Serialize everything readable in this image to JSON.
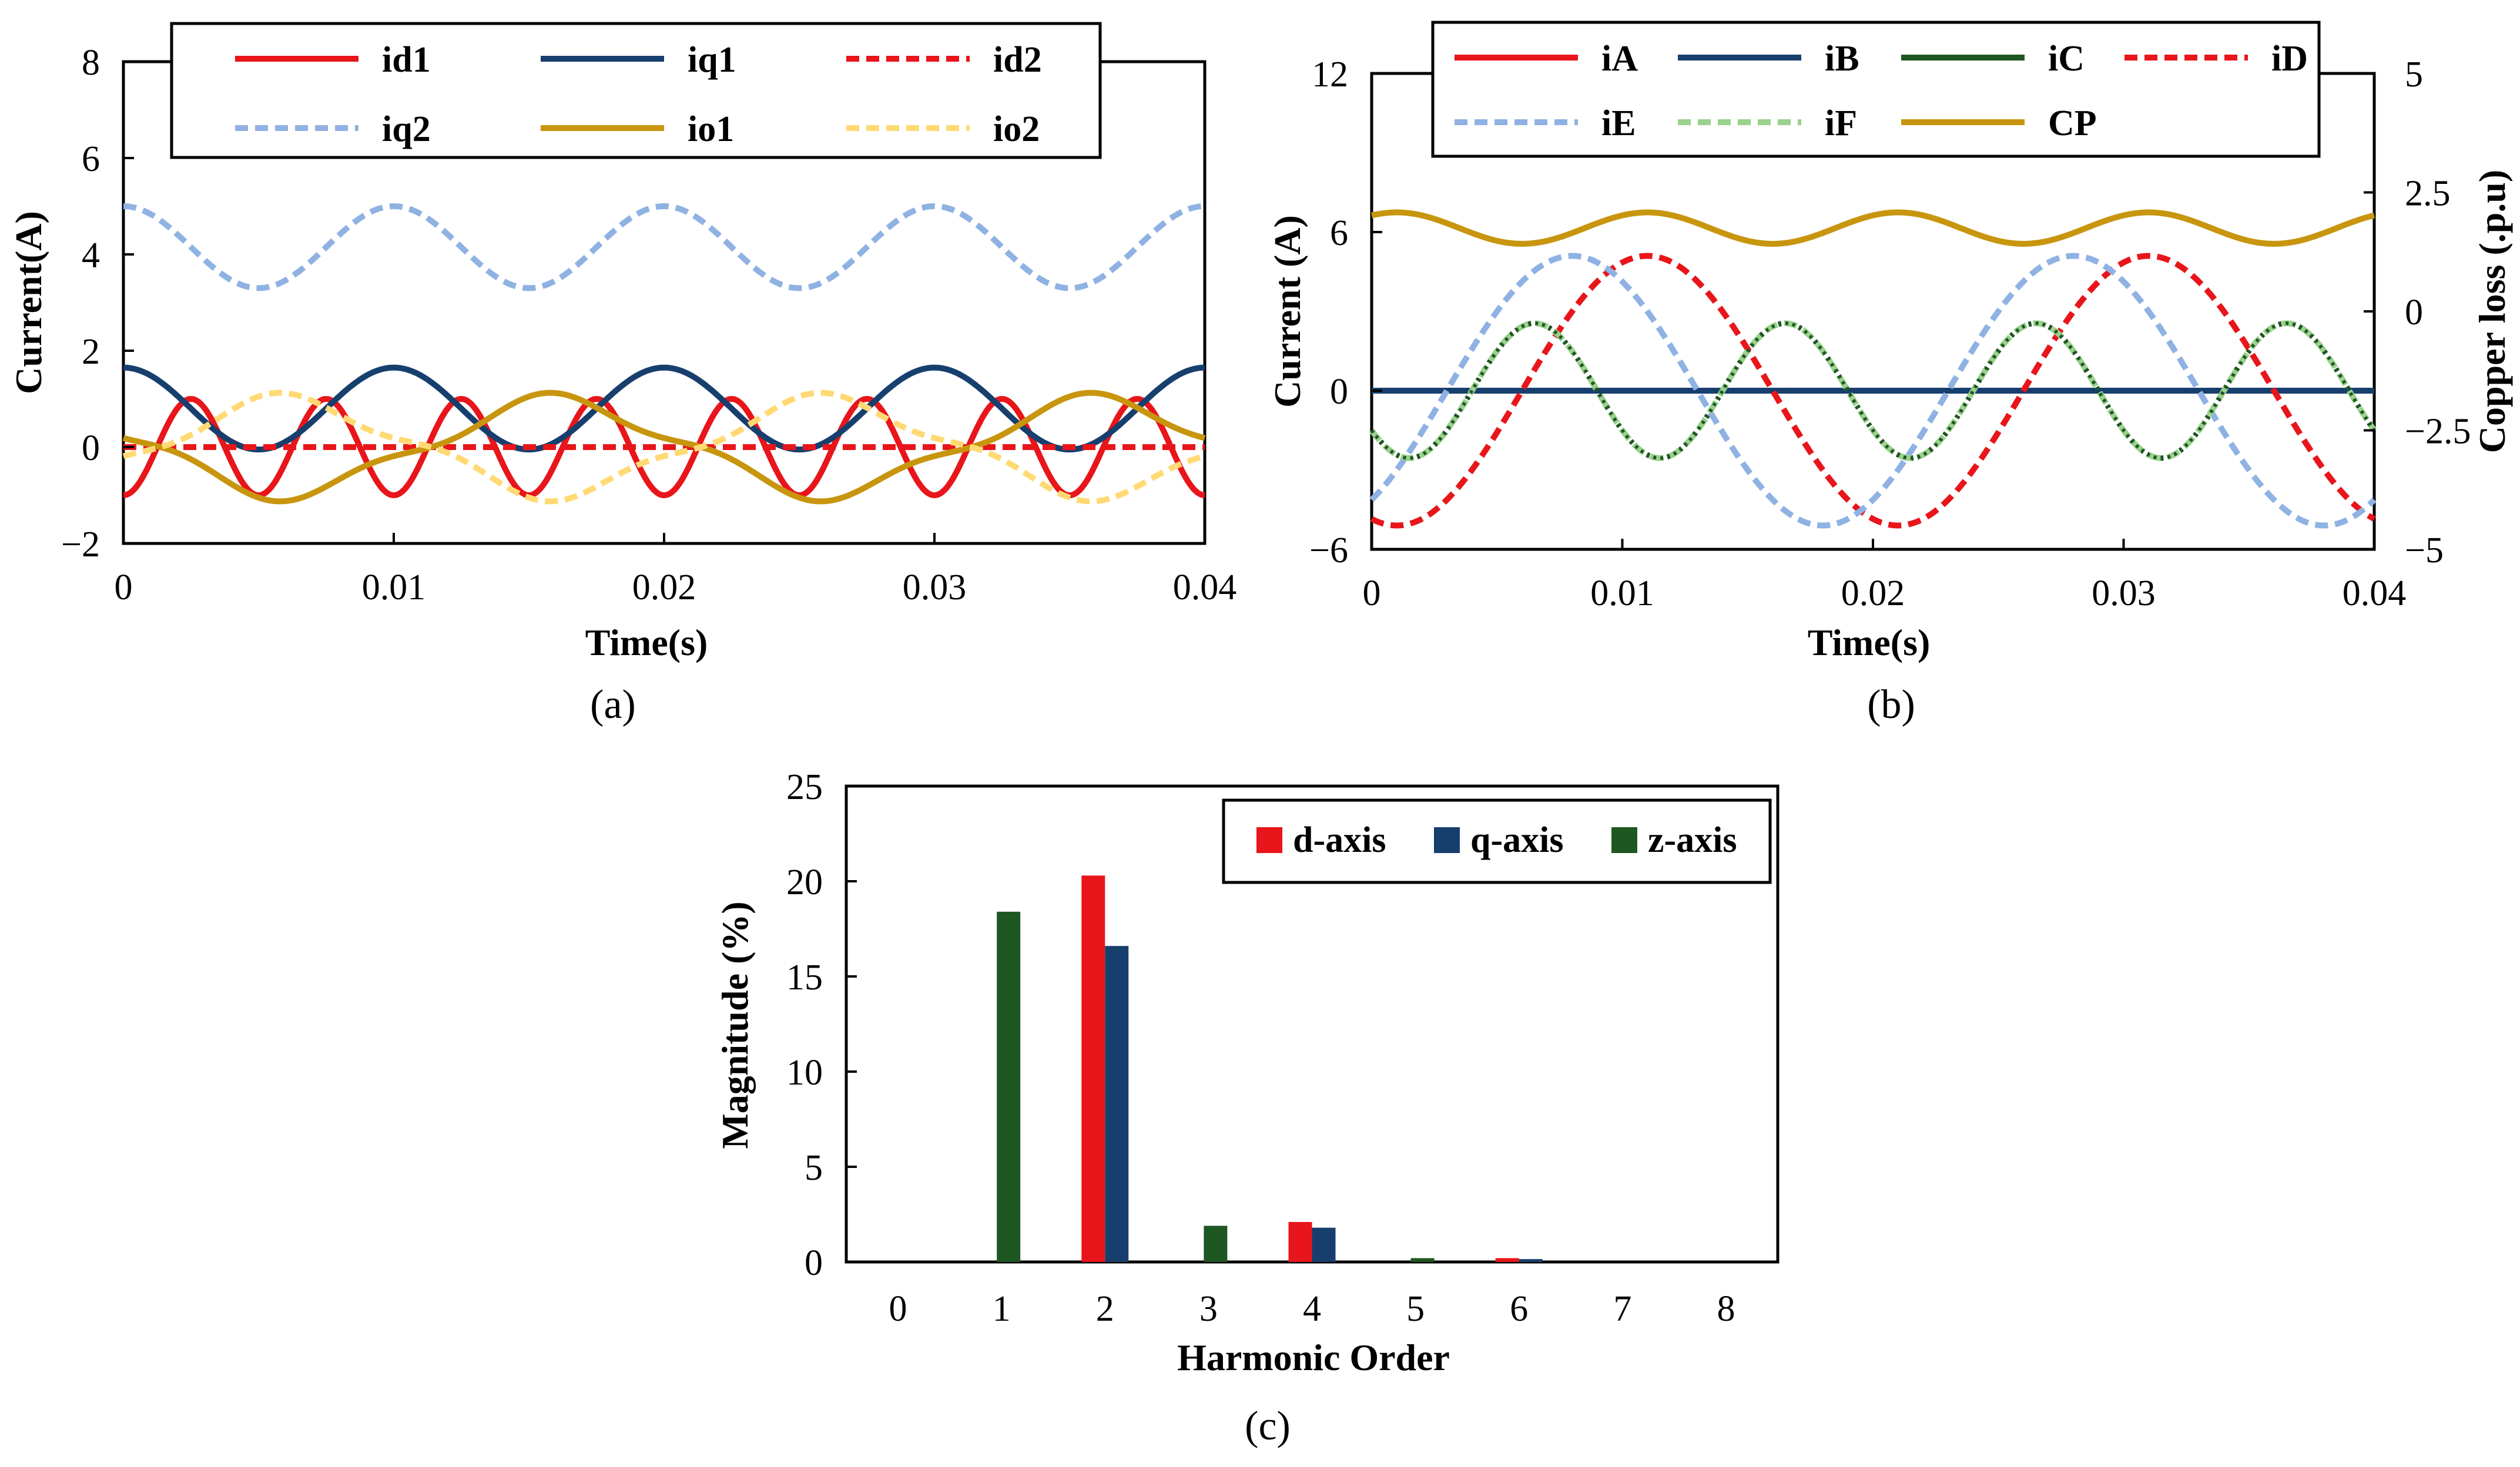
{
  "figure": {
    "panel_labels": [
      "(a)",
      "(b)",
      "(c)"
    ]
  },
  "colors": {
    "red": "#e8151a",
    "navy": "#173f6e",
    "darkgreen": "#1f5722",
    "lightblue": "#8fb2e3",
    "gold": "#c8950e",
    "lightyellow": "#ffda74",
    "lightgreen": "#99d18d",
    "black": "#000000"
  },
  "chart_data": [
    {
      "id": "a",
      "type": "line",
      "xlabel": "Time(s)",
      "ylabel": "Current(A)",
      "xlim": [
        0,
        0.04
      ],
      "ylim": [
        -2,
        8
      ],
      "xticks": [
        0,
        0.01,
        0.02,
        0.03,
        0.04
      ],
      "xtick_labels": [
        "0",
        "0.01",
        "0.02",
        "0.03",
        "0.04"
      ],
      "yticks": [
        -2,
        0,
        2,
        4,
        6,
        8
      ],
      "ytick_labels": [
        "−2",
        "0",
        "2",
        "4",
        "6",
        "8"
      ],
      "legend": "top",
      "series": [
        {
          "name": "id1",
          "style": "solid",
          "color": "red",
          "fn": {
            "offset": 0,
            "terms": [
              [
                1.0,
                200,
                0.5
              ]
            ]
          }
        },
        {
          "name": "iq1",
          "style": "solid",
          "color": "navy",
          "fn": {
            "offset": 0.8,
            "terms": [
              [
                0.85,
                100,
                0.0
              ]
            ]
          }
        },
        {
          "name": "id2",
          "style": "dashed",
          "color": "red",
          "fn": {
            "offset": 0,
            "terms": []
          }
        },
        {
          "name": "iq2",
          "style": "dashed",
          "color": "lightblue",
          "fn": {
            "offset": 4.15,
            "terms": [
              [
                0.85,
                100,
                0.0
              ]
            ]
          }
        },
        {
          "name": "io1",
          "style": "solid",
          "color": "gold",
          "fn": {
            "offset": 0,
            "terms": [
              [
                -0.95,
                50,
                0.3
              ],
              [
                -0.18,
                150,
                0.85
              ]
            ]
          }
        },
        {
          "name": "io2",
          "style": "dashed",
          "color": "lightyellow",
          "fn": {
            "offset": 0,
            "terms": [
              [
                0.95,
                50,
                0.3
              ],
              [
                0.18,
                150,
                0.85
              ]
            ]
          }
        }
      ]
    },
    {
      "id": "b",
      "type": "line",
      "xlabel": "Time(s)",
      "ylabel": "Current (A)",
      "y2label": "Copper loss (.p.u)",
      "xlim": [
        0,
        0.04
      ],
      "ylim": [
        -6,
        12
      ],
      "y2lim": [
        -5,
        5
      ],
      "xticks": [
        0,
        0.01,
        0.02,
        0.03,
        0.04
      ],
      "xtick_labels": [
        "0",
        "0.01",
        "0.02",
        "0.03",
        "0.04"
      ],
      "yticks": [
        -6,
        0,
        6,
        12
      ],
      "ytick_labels": [
        "−6",
        "0",
        "6",
        "12"
      ],
      "y2ticks": [
        -5,
        -2.5,
        0,
        2.5,
        5
      ],
      "y2tick_labels": [
        "−5",
        "−2.5",
        "0",
        "2.5",
        "5"
      ],
      "legend": "top",
      "series": [
        {
          "name": "iA",
          "style": "solid",
          "color": "red",
          "fn": {
            "offset": 0,
            "terms": []
          }
        },
        {
          "name": "iB",
          "style": "solid",
          "color": "navy",
          "fn": {
            "offset": 0,
            "terms": []
          }
        },
        {
          "name": "iC",
          "style": "dotted-over-light",
          "color": "darkgreen",
          "fn": {
            "offset": 0,
            "terms": [
              [
                -2.55,
                100,
                0.15
              ]
            ]
          }
        },
        {
          "name": "iD",
          "style": "dashed",
          "color": "red",
          "fn": {
            "offset": 0,
            "terms": [
              [
                -5.1,
                50,
                0.05
              ]
            ]
          }
        },
        {
          "name": "iE",
          "style": "dashed",
          "color": "lightblue",
          "fn": {
            "offset": 0,
            "terms": [
              [
                5.1,
                50,
                0.4
              ]
            ]
          }
        },
        {
          "name": "iF",
          "style": "dashed",
          "color": "lightgreen",
          "fn": {
            "offset": 0,
            "terms": [
              [
                -2.55,
                100,
                0.15
              ]
            ]
          }
        },
        {
          "name": "CP",
          "style": "solid",
          "color": "gold",
          "axis": "right",
          "fn": {
            "offset": 1.75,
            "terms": [
              [
                0.33,
                100,
                0.1
              ]
            ]
          }
        }
      ]
    },
    {
      "id": "c",
      "type": "bar",
      "xlabel": "Harmonic Order",
      "ylabel": "Magnitude (%)",
      "categories": [
        "0",
        "1",
        "2",
        "3",
        "4",
        "5",
        "6",
        "7",
        "8"
      ],
      "ylim": [
        0,
        25
      ],
      "yticks": [
        0,
        5,
        10,
        15,
        20,
        25
      ],
      "ytick_labels": [
        "0",
        "5",
        "10",
        "15",
        "20",
        "25"
      ],
      "legend": "top-right",
      "series": [
        {
          "name": "d-axis",
          "color": "red",
          "values": [
            0,
            0,
            20.3,
            0,
            2.1,
            0,
            0.2,
            0,
            0
          ]
        },
        {
          "name": "q-axis",
          "color": "navy",
          "values": [
            0,
            0,
            16.6,
            0,
            1.8,
            0,
            0.15,
            0,
            0
          ]
        },
        {
          "name": "z-axis",
          "color": "darkgreen",
          "values": [
            0,
            18.4,
            0,
            1.9,
            0,
            0.2,
            0,
            0,
            0
          ]
        }
      ]
    }
  ]
}
